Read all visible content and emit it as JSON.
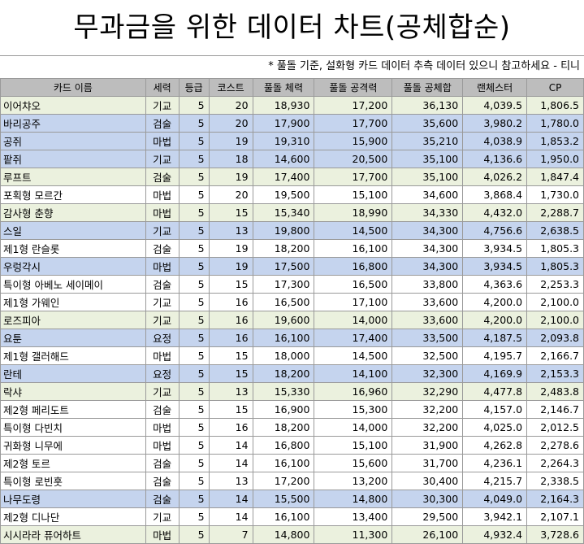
{
  "title": "무과금을 위한 데이터 차트(공체합순)",
  "note": "* 풀돌 기준, 설화형 카드 데이터 추측 데이터 있으니 참고하세요 - 티니",
  "colors": {
    "green": "#ebf1de",
    "blue": "#c5d4ee",
    "white": "#ffffff",
    "header": "#bdbdbd"
  },
  "columns": [
    "카드 이름",
    "세력",
    "등급",
    "코스트",
    "풀돌 체력",
    "풀돌 공격력",
    "풀돌 공체합",
    "랜체스터",
    "CP"
  ],
  "rows": [
    {
      "color": "green",
      "cells": [
        "이어챠오",
        "기교",
        "5",
        "20",
        "18,930",
        "17,200",
        "36,130",
        "4,039.5",
        "1,806.5"
      ]
    },
    {
      "color": "blue",
      "cells": [
        "바리공주",
        "검술",
        "5",
        "20",
        "17,900",
        "17,700",
        "35,600",
        "3,980.2",
        "1,780.0"
      ]
    },
    {
      "color": "blue",
      "cells": [
        "공쥐",
        "마법",
        "5",
        "19",
        "19,310",
        "15,900",
        "35,210",
        "4,038.9",
        "1,853.2"
      ]
    },
    {
      "color": "blue",
      "cells": [
        "팥쥐",
        "기교",
        "5",
        "18",
        "14,600",
        "20,500",
        "35,100",
        "4,136.6",
        "1,950.0"
      ]
    },
    {
      "color": "green",
      "cells": [
        "루프트",
        "검술",
        "5",
        "19",
        "17,400",
        "17,700",
        "35,100",
        "4,026.2",
        "1,847.4"
      ]
    },
    {
      "color": "white",
      "cells": [
        "포획형 모르간",
        "마법",
        "5",
        "20",
        "19,500",
        "15,100",
        "34,600",
        "3,868.4",
        "1,730.0"
      ]
    },
    {
      "color": "green",
      "cells": [
        "감사형 춘향",
        "마법",
        "5",
        "15",
        "15,340",
        "18,990",
        "34,330",
        "4,432.0",
        "2,288.7"
      ]
    },
    {
      "color": "blue",
      "cells": [
        "스일",
        "기교",
        "5",
        "13",
        "19,800",
        "14,500",
        "34,300",
        "4,756.6",
        "2,638.5"
      ]
    },
    {
      "color": "white",
      "cells": [
        "제1형 란슬롯",
        "검술",
        "5",
        "19",
        "18,200",
        "16,100",
        "34,300",
        "3,934.5",
        "1,805.3"
      ]
    },
    {
      "color": "blue",
      "cells": [
        "우렁각시",
        "마법",
        "5",
        "19",
        "17,500",
        "16,800",
        "34,300",
        "3,934.5",
        "1,805.3"
      ]
    },
    {
      "color": "white",
      "cells": [
        "특이형 아베노 세이메이",
        "검술",
        "5",
        "15",
        "17,300",
        "16,500",
        "33,800",
        "4,363.6",
        "2,253.3"
      ]
    },
    {
      "color": "white",
      "cells": [
        "제1형 가웨인",
        "기교",
        "5",
        "16",
        "16,500",
        "17,100",
        "33,600",
        "4,200.0",
        "2,100.0"
      ]
    },
    {
      "color": "green",
      "cells": [
        "로즈피아",
        "기교",
        "5",
        "16",
        "19,600",
        "14,000",
        "33,600",
        "4,200.0",
        "2,100.0"
      ]
    },
    {
      "color": "blue",
      "cells": [
        "요툰",
        "요정",
        "5",
        "16",
        "16,100",
        "17,400",
        "33,500",
        "4,187.5",
        "2,093.8"
      ]
    },
    {
      "color": "white",
      "cells": [
        "제1형 갤러해드",
        "마법",
        "5",
        "15",
        "18,000",
        "14,500",
        "32,500",
        "4,195.7",
        "2,166.7"
      ]
    },
    {
      "color": "blue",
      "cells": [
        "란테",
        "요정",
        "5",
        "15",
        "18,200",
        "14,100",
        "32,300",
        "4,169.9",
        "2,153.3"
      ]
    },
    {
      "color": "green",
      "cells": [
        "락샤",
        "기교",
        "5",
        "13",
        "15,330",
        "16,960",
        "32,290",
        "4,477.8",
        "2,483.8"
      ]
    },
    {
      "color": "white",
      "cells": [
        "제2형 페리도트",
        "검술",
        "5",
        "15",
        "16,900",
        "15,300",
        "32,200",
        "4,157.0",
        "2,146.7"
      ]
    },
    {
      "color": "white",
      "cells": [
        "특이형 다빈치",
        "마법",
        "5",
        "16",
        "18,200",
        "14,000",
        "32,200",
        "4,025.0",
        "2,012.5"
      ]
    },
    {
      "color": "white",
      "cells": [
        "귀화형 니무에",
        "마법",
        "5",
        "14",
        "16,800",
        "15,100",
        "31,900",
        "4,262.8",
        "2,278.6"
      ]
    },
    {
      "color": "white",
      "cells": [
        "제2형 토르",
        "검술",
        "5",
        "14",
        "16,100",
        "15,600",
        "31,700",
        "4,236.1",
        "2,264.3"
      ]
    },
    {
      "color": "white",
      "cells": [
        "특이형 로빈훗",
        "검술",
        "5",
        "13",
        "17,200",
        "13,200",
        "30,400",
        "4,215.7",
        "2,338.5"
      ]
    },
    {
      "color": "blue",
      "cells": [
        "나무도령",
        "검술",
        "5",
        "14",
        "15,500",
        "14,800",
        "30,300",
        "4,049.0",
        "2,164.3"
      ]
    },
    {
      "color": "white",
      "cells": [
        "제2형 디나단",
        "기교",
        "5",
        "14",
        "16,100",
        "13,400",
        "29,500",
        "3,942.1",
        "2,107.1"
      ]
    },
    {
      "color": "green",
      "cells": [
        "시시라라 퓨어하트",
        "마법",
        "5",
        "7",
        "14,800",
        "11,300",
        "26,100",
        "4,932.4",
        "3,728.6"
      ]
    }
  ]
}
